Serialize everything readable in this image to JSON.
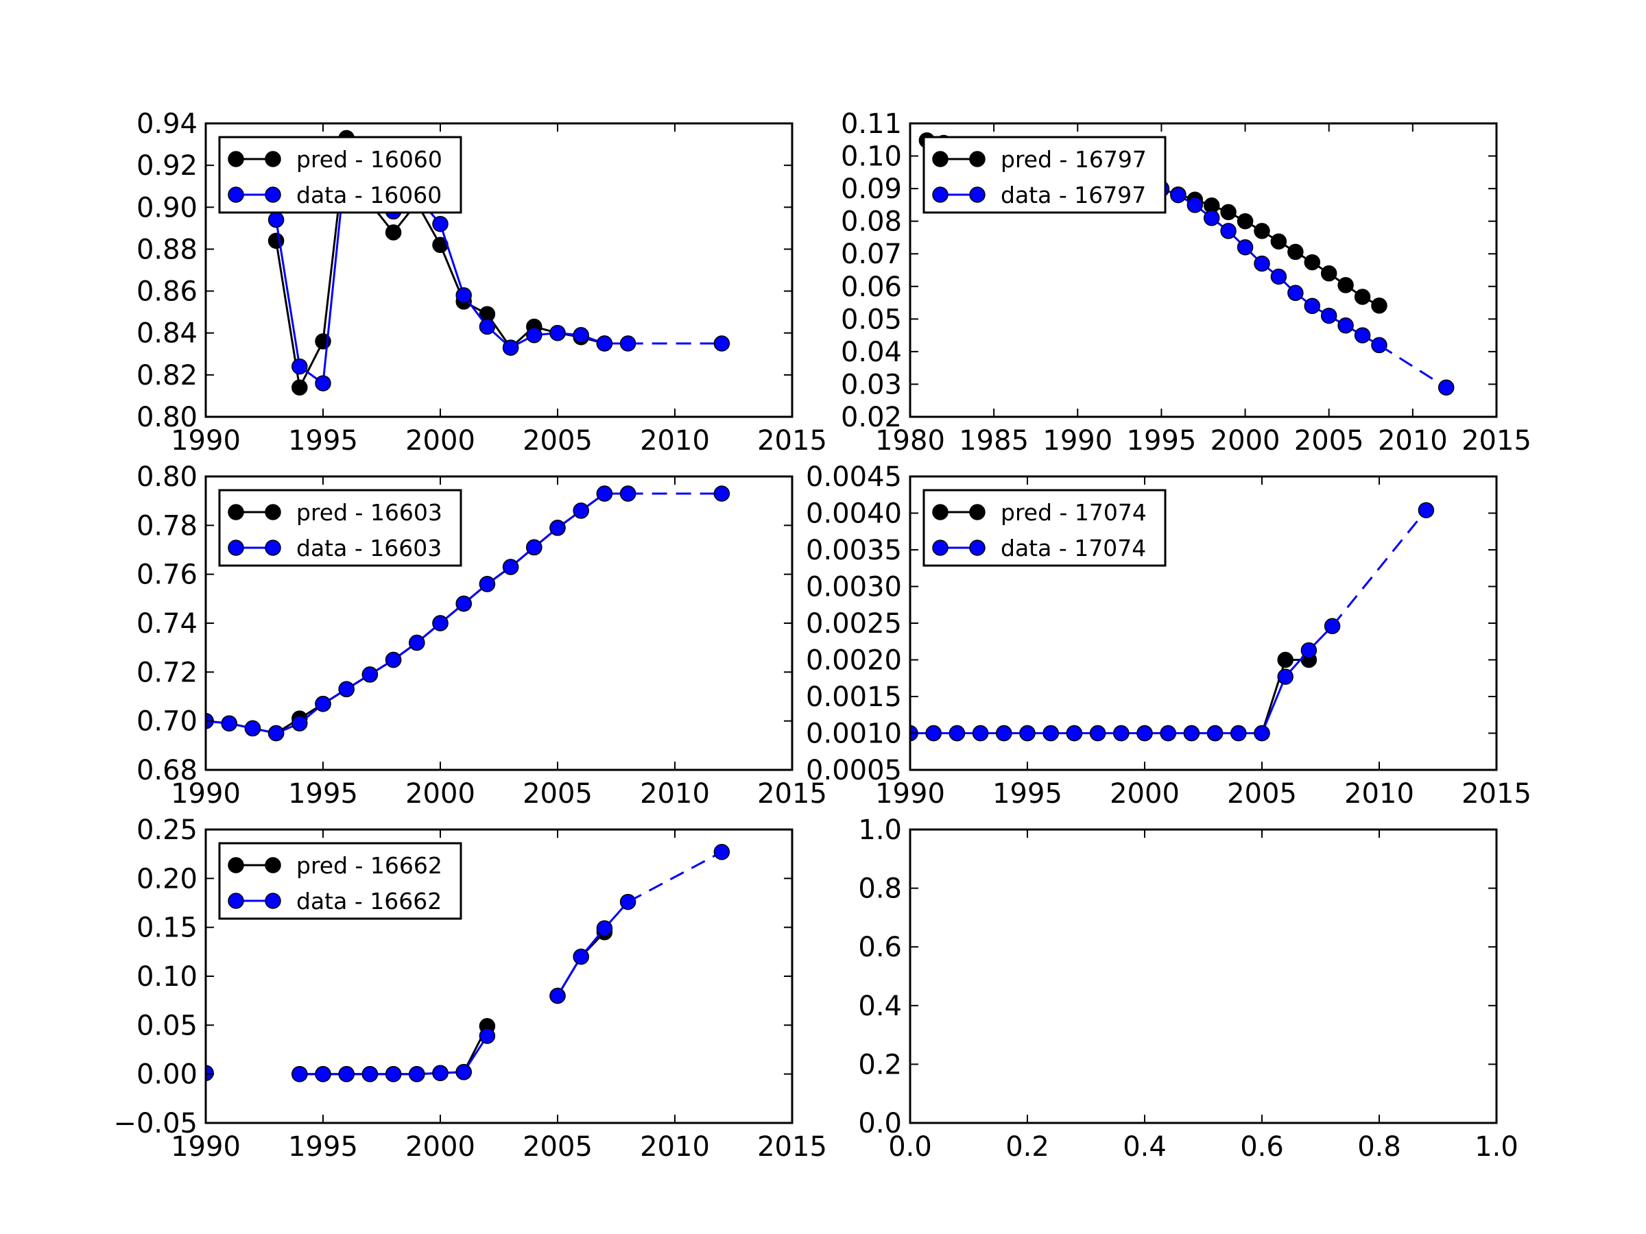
{
  "colors": {
    "pred": "#000000",
    "data": "#0000ff",
    "axes": "#000000",
    "background": "#ffffff"
  },
  "chart_data": [
    {
      "type": "line",
      "xlim": [
        1990,
        2015
      ],
      "ylim": [
        0.8,
        0.94
      ],
      "xticks": [
        "1990",
        "1995",
        "2000",
        "2005",
        "2010",
        "2015"
      ],
      "yticks": [
        "0.80",
        "0.82",
        "0.84",
        "0.86",
        "0.88",
        "0.90",
        "0.92",
        "0.94"
      ],
      "legend": {
        "placement": "upper-left",
        "entries": [
          "pred - 16060",
          "data - 16060"
        ]
      },
      "series": [
        {
          "name": "pred - 16060",
          "color": "#000000",
          "linestyle": "solid",
          "x": [
            1993,
            1994,
            1995,
            1996,
            1997,
            1998,
            1999,
            2000,
            2001,
            2002,
            2003,
            2004,
            2005,
            2006,
            2007
          ],
          "y": [
            0.884,
            0.814,
            0.836,
            0.933,
            0.902,
            0.888,
            0.902,
            0.882,
            0.855,
            0.849,
            0.833,
            0.843,
            0.84,
            0.838,
            0.835
          ]
        },
        {
          "name": "data - 16060",
          "color": "#0000ff",
          "linestyle": "solid",
          "x": [
            1993,
            1994,
            1995,
            1996,
            1997,
            1998,
            1999,
            2000,
            2001,
            2002,
            2003,
            2004,
            2005,
            2006,
            2007,
            2008
          ],
          "y": [
            0.894,
            0.824,
            0.816,
            0.925,
            0.91,
            0.898,
            0.905,
            0.892,
            0.858,
            0.843,
            0.833,
            0.839,
            0.84,
            0.839,
            0.835,
            0.835
          ]
        },
        {
          "color": "#0000ff",
          "linestyle": "dashed",
          "markers": [
            false,
            true
          ],
          "x": [
            2008,
            2012
          ],
          "y": [
            0.835,
            0.835
          ]
        }
      ]
    },
    {
      "type": "line",
      "xlim": [
        1980,
        2015
      ],
      "ylim": [
        0.02,
        0.11
      ],
      "xticks": [
        "1980",
        "1985",
        "1990",
        "1995",
        "2000",
        "2005",
        "2010",
        "2015"
      ],
      "yticks": [
        "0.02",
        "0.03",
        "0.04",
        "0.05",
        "0.06",
        "0.07",
        "0.08",
        "0.09",
        "0.10",
        "0.11"
      ],
      "legend": {
        "placement": "upper-left",
        "entries": [
          "pred - 16797",
          "data - 16797"
        ]
      },
      "series": [
        {
          "name": "pred - 16797",
          "color": "#000000",
          "linestyle": "solid",
          "x": [
            1981,
            1982,
            1983,
            1984,
            1985,
            1986,
            1987,
            1988,
            1989,
            1990,
            1991,
            1992,
            1993,
            1994,
            1995,
            1996,
            1997,
            1998,
            1999,
            2000,
            2001,
            2002,
            2003,
            2004,
            2005,
            2006,
            2007,
            2008
          ],
          "y": [
            0.1048,
            0.104,
            0.1032,
            0.1024,
            0.1016,
            0.1008,
            0.1,
            0.099,
            0.098,
            0.097,
            0.096,
            0.0948,
            0.0932,
            0.0915,
            0.0898,
            0.0882,
            0.0866,
            0.0848,
            0.0828,
            0.08,
            0.077,
            0.0738,
            0.0706,
            0.0674,
            0.064,
            0.0604,
            0.0568,
            0.0541
          ]
        },
        {
          "name": "data - 16797",
          "color": "#0000ff",
          "linestyle": "solid",
          "x": [
            1995,
            1996,
            1997,
            1998,
            1999,
            2000,
            2001,
            2002,
            2003,
            2004,
            2005,
            2006,
            2007,
            2008
          ],
          "y": [
            0.09,
            0.088,
            0.085,
            0.081,
            0.077,
            0.072,
            0.067,
            0.063,
            0.058,
            0.054,
            0.051,
            0.048,
            0.045,
            0.042
          ]
        },
        {
          "color": "#0000ff",
          "linestyle": "dashed",
          "markers": [
            false,
            true
          ],
          "x": [
            2008,
            2012
          ],
          "y": [
            0.042,
            0.029
          ]
        }
      ]
    },
    {
      "type": "line",
      "xlim": [
        1990,
        2015
      ],
      "ylim": [
        0.68,
        0.8
      ],
      "xticks": [
        "1990",
        "1995",
        "2000",
        "2005",
        "2010",
        "2015"
      ],
      "yticks": [
        "0.68",
        "0.70",
        "0.72",
        "0.74",
        "0.76",
        "0.78",
        "0.80"
      ],
      "legend": {
        "placement": "upper-left",
        "entries": [
          "pred - 16603",
          "data - 16603"
        ]
      },
      "series": [
        {
          "name": "pred - 16603",
          "color": "#000000",
          "linestyle": "solid",
          "x": [
            1990,
            1991,
            1992,
            1993,
            1994,
            1995,
            1996,
            1997,
            1998,
            1999,
            2000,
            2001,
            2002,
            2003,
            2004,
            2005,
            2006,
            2007,
            2008
          ],
          "y": [
            0.7,
            0.699,
            0.697,
            0.695,
            0.701,
            0.707,
            0.713,
            0.719,
            0.725,
            0.732,
            0.74,
            0.748,
            0.756,
            0.763,
            0.771,
            0.779,
            0.786,
            0.793,
            0.793
          ]
        },
        {
          "name": "data - 16603",
          "color": "#0000ff",
          "linestyle": "solid",
          "x": [
            1990,
            1991,
            1992,
            1993,
            1994,
            1995,
            1996,
            1997,
            1998,
            1999,
            2000,
            2001,
            2002,
            2003,
            2004,
            2005,
            2006,
            2007,
            2008
          ],
          "y": [
            0.7,
            0.699,
            0.697,
            0.695,
            0.699,
            0.707,
            0.713,
            0.719,
            0.725,
            0.732,
            0.74,
            0.748,
            0.756,
            0.763,
            0.771,
            0.779,
            0.786,
            0.793,
            0.793
          ]
        },
        {
          "color": "#0000ff",
          "linestyle": "dashed",
          "markers": [
            false,
            true
          ],
          "x": [
            2008,
            2012
          ],
          "y": [
            0.793,
            0.793
          ]
        }
      ]
    },
    {
      "type": "line",
      "xlim": [
        1990,
        2015
      ],
      "ylim": [
        0.0005,
        0.0045
      ],
      "xticks": [
        "1990",
        "1995",
        "2000",
        "2005",
        "2010",
        "2015"
      ],
      "yticks": [
        "0.0005",
        "0.0010",
        "0.0015",
        "0.0020",
        "0.0025",
        "0.0030",
        "0.0035",
        "0.0040",
        "0.0045"
      ],
      "legend": {
        "placement": "upper-left",
        "entries": [
          "pred - 17074",
          "data - 17074"
        ]
      },
      "series": [
        {
          "name": "pred - 17074",
          "color": "#000000",
          "linestyle": "solid",
          "x": [
            1990,
            1991,
            1992,
            1993,
            1994,
            1995,
            1996,
            1997,
            1998,
            1999,
            2000,
            2001,
            2002,
            2003,
            2004,
            2005,
            2006,
            2007
          ],
          "y": [
            0.001,
            0.001,
            0.001,
            0.001,
            0.001,
            0.001,
            0.001,
            0.001,
            0.001,
            0.001,
            0.001,
            0.001,
            0.001,
            0.001,
            0.001,
            0.001,
            0.002,
            0.002
          ]
        },
        {
          "name": "data - 17074",
          "color": "#0000ff",
          "linestyle": "solid",
          "x": [
            1990,
            1991,
            1992,
            1993,
            1994,
            1995,
            1996,
            1997,
            1998,
            1999,
            2000,
            2001,
            2002,
            2003,
            2004,
            2005,
            2006,
            2007,
            2008
          ],
          "y": [
            0.001,
            0.001,
            0.001,
            0.001,
            0.001,
            0.001,
            0.001,
            0.001,
            0.001,
            0.001,
            0.001,
            0.001,
            0.001,
            0.001,
            0.001,
            0.001,
            0.00177,
            0.00213,
            0.00246
          ]
        },
        {
          "color": "#0000ff",
          "linestyle": "dashed",
          "markers": [
            false,
            true
          ],
          "x": [
            2008,
            2012
          ],
          "y": [
            0.00246,
            0.00404
          ]
        }
      ]
    },
    {
      "type": "line",
      "xlim": [
        1990,
        2015
      ],
      "ylim": [
        -0.05,
        0.25
      ],
      "xticks": [
        "1990",
        "1995",
        "2000",
        "2005",
        "2010",
        "2015"
      ],
      "yticks": [
        "−0.05",
        "0.00",
        "0.05",
        "0.10",
        "0.15",
        "0.20",
        "0.25"
      ],
      "legend": {
        "placement": "upper-left",
        "entries": [
          "pred - 16662",
          "data - 16662"
        ]
      },
      "series": [
        {
          "name": "pred - 16662",
          "color": "#000000",
          "linestyle": "solid",
          "x": [
            1994,
            1995,
            1996,
            1997,
            1998,
            1999,
            2000,
            2001,
            2002
          ],
          "y": [
            0.0,
            0.0,
            0.0,
            0.0,
            0.0,
            0.0,
            0.001,
            0.002,
            0.049
          ]
        },
        {
          "name": "pred - 16662",
          "color": "#000000",
          "linestyle": "solid",
          "x": [
            2005,
            2006,
            2007
          ],
          "y": [
            0.08,
            0.12,
            0.145
          ]
        },
        {
          "name": "pred - 16662",
          "color": "#000000",
          "linestyle": "solid",
          "x": [
            1990
          ],
          "y": [
            0.001
          ]
        },
        {
          "name": "data - 16662",
          "color": "#0000ff",
          "linestyle": "solid",
          "x": [
            1990
          ],
          "y": [
            0.001
          ]
        },
        {
          "name": "data - 16662",
          "color": "#0000ff",
          "linestyle": "solid",
          "x": [
            1994,
            1995,
            1996,
            1997,
            1998,
            1999,
            2000,
            2001,
            2002
          ],
          "y": [
            0.0,
            0.0,
            0.0,
            0.0,
            0.0,
            0.0,
            0.001,
            0.002,
            0.039
          ]
        },
        {
          "name": "data - 16662",
          "color": "#0000ff",
          "linestyle": "solid",
          "x": [
            2005,
            2006,
            2007,
            2008
          ],
          "y": [
            0.08,
            0.12,
            0.149,
            0.176
          ]
        },
        {
          "color": "#0000ff",
          "linestyle": "dashed",
          "markers": [
            false,
            true
          ],
          "x": [
            2008,
            2012
          ],
          "y": [
            0.176,
            0.227
          ]
        }
      ]
    },
    {
      "type": "line",
      "xlim": [
        0.0,
        1.0
      ],
      "ylim": [
        0.0,
        1.0
      ],
      "xticks": [
        "0.0",
        "0.2",
        "0.4",
        "0.6",
        "0.8",
        "1.0"
      ],
      "yticks": [
        "0.0",
        "0.2",
        "0.4",
        "0.6",
        "0.8",
        "1.0"
      ],
      "legend": null,
      "series": []
    }
  ]
}
